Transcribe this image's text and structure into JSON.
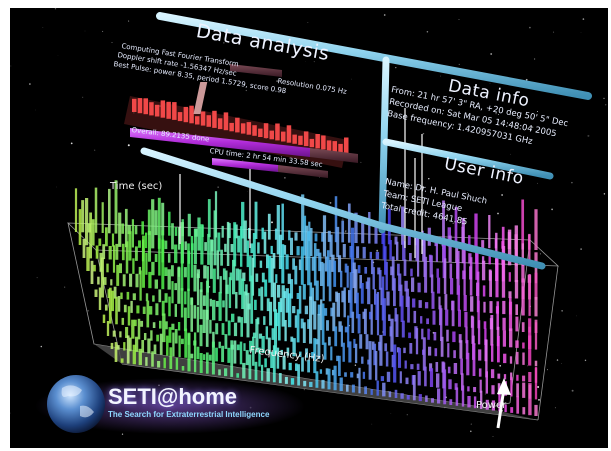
{
  "data_analysis": {
    "title": "Data analysis",
    "line1": "Computing Fast Fourier Transform",
    "line2a": "Doppler shift rate  -1.56347 Hz/sec",
    "line2b": "Resolution  0.075 Hz",
    "line3": "Best Pulse: power   8.35,  period  1.5729,  score   0.98",
    "overall": "Overall: 89.2135 done",
    "cpu": "CPU time:  2 hr  54 min  33.58 sec"
  },
  "data_info": {
    "title": "Data info",
    "from": "From:  21 hr  57'  3\" RA,  +20 deg  50'  5\"  Dec",
    "recorded": "Recorded on:  Sat Mar 05 14:48:04 2005",
    "base_freq": "Base frequency:  1.420957031  GHz"
  },
  "user_info": {
    "title": "User info",
    "name": "Name:  Dr. H. Paul Shuch",
    "team": "Team:  SETI League",
    "credit": "Total credit:   4641.85"
  },
  "graph": {
    "time_label": "Time (sec)",
    "freq_label": "Frequency (Hz)",
    "power_label": "Power"
  },
  "logo": {
    "title": "SETI@home",
    "tagline": "The Search for Extraterrestrial Intelligence"
  },
  "colors": {
    "background": "#000000",
    "tube": "#8fd3ee",
    "progress": "#b02bd8",
    "pulse_bars": "#f04848"
  }
}
